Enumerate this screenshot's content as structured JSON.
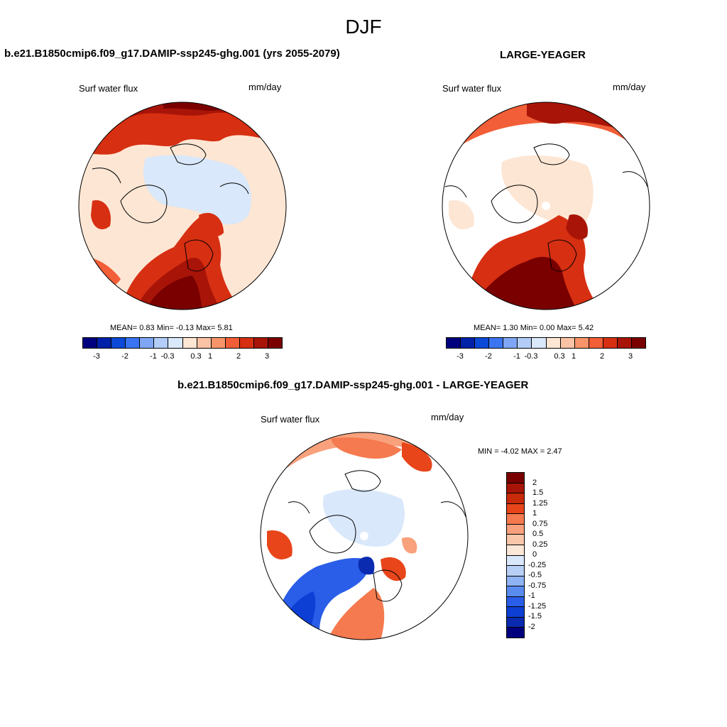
{
  "page_title": "DJF",
  "panels": {
    "left": {
      "case": "b.e21.B1850cmip6.f09_g17.DAMIP-ssp245-ghg.001 (yrs 2055-2079)",
      "variable": "Surf water flux",
      "units": "mm/day",
      "stats": "MEAN=   0.83  Min=   -0.13   Max=    5.81"
    },
    "right": {
      "case": "LARGE-YEAGER",
      "variable": "Surf water flux",
      "units": "mm/day",
      "stats": "MEAN=   1.30  Min=    0.00   Max=    5.42"
    },
    "diff": {
      "case": "b.e21.B1850cmip6.f09_g17.DAMIP-ssp245-ghg.001 - LARGE-YEAGER",
      "variable": "Surf water flux",
      "units": "mm/day",
      "stats": "MIN =   -4.02 MAX =    2.47"
    }
  },
  "top_colorbar": {
    "colors": [
      "#00007f",
      "#0021a8",
      "#0b49d6",
      "#3a74f0",
      "#7ea6f5",
      "#b3cdf8",
      "#d9e8fa",
      "#fde6d4",
      "#fbc3a5",
      "#f7946a",
      "#f25e37",
      "#d72f12",
      "#a81508",
      "#7a0000"
    ],
    "tick_labels": [
      "-3",
      "-2",
      "-1",
      "-0.3",
      "0.3",
      "1",
      "2",
      "3"
    ]
  },
  "diff_colorbar": {
    "colors": [
      "#7a0000",
      "#a81508",
      "#c92a0a",
      "#e8451a",
      "#f57a4f",
      "#f8a17c",
      "#fbc7ab",
      "#fde8d8",
      "#d9e8fa",
      "#b8d0f6",
      "#8fb3f3",
      "#5a8cef",
      "#2a5ee8",
      "#0d3fd4",
      "#0a2bb0",
      "#00007f"
    ],
    "tick_labels": [
      "2",
      "1.5",
      "1.25",
      "1",
      "0.75",
      "0.5",
      "0.25",
      "0",
      "-0.25",
      "-0.5",
      "-0.75",
      "-1",
      "-1.25",
      "-1.5",
      "-2"
    ]
  }
}
